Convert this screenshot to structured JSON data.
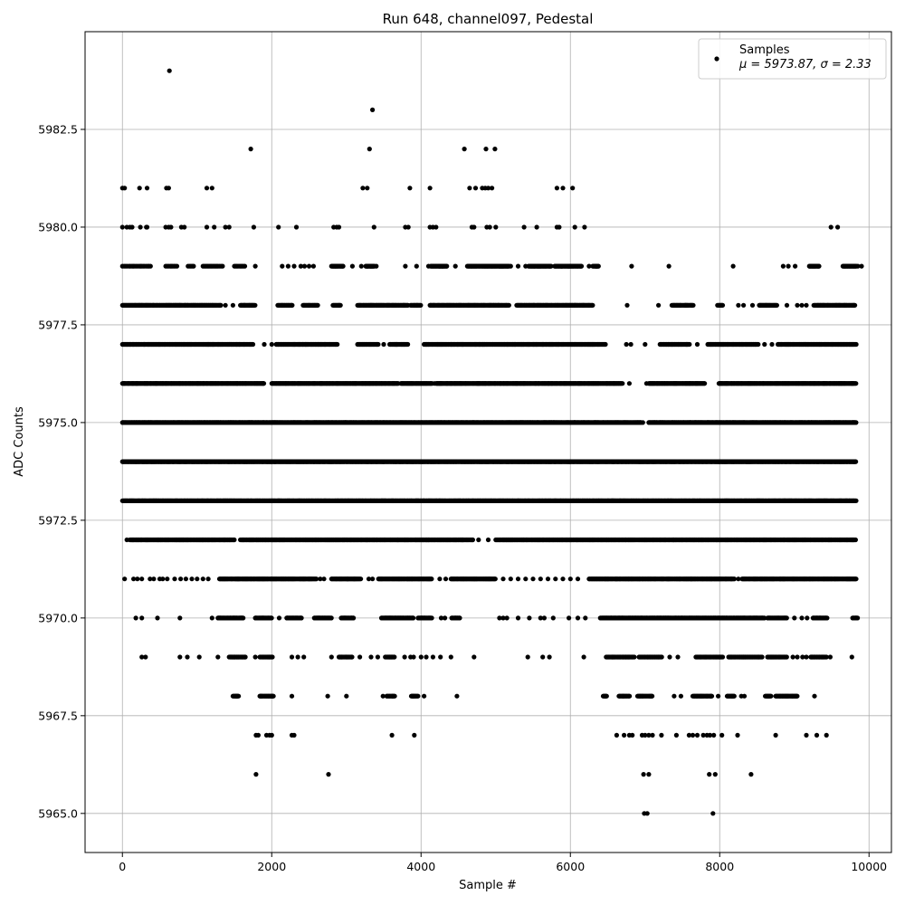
{
  "chart_data": {
    "type": "scatter",
    "title": "Run 648, channel097, Pedestal",
    "xlabel": "Sample #",
    "ylabel": "ADC Counts",
    "xlim": [
      -500,
      10300
    ],
    "ylim": [
      5964.0,
      5985.0
    ],
    "x_ticks": [
      0,
      2000,
      4000,
      6000,
      8000,
      10000
    ],
    "x_tick_labels": [
      "0",
      "2000",
      "4000",
      "6000",
      "8000",
      "10000"
    ],
    "y_ticks": [
      5965.0,
      5967.5,
      5970.0,
      5972.5,
      5975.0,
      5977.5,
      5980.0,
      5982.5
    ],
    "y_tick_labels": [
      "5965.0",
      "5967.5",
      "5970.0",
      "5972.5",
      "5975.0",
      "5977.5",
      "5980.0",
      "5982.5"
    ],
    "grid": true,
    "legend_position": "top-right",
    "marker_color": "#000000",
    "series": [
      {
        "name": "Samples",
        "legend_stats": "μ = 5973.87, σ = 2.33",
        "levels": [
          {
            "y": 5984,
            "x": [
              630
            ]
          },
          {
            "y": 5983,
            "x": [
              3350
            ]
          },
          {
            "y": 5982,
            "x": [
              1720,
              3310,
              4580,
              4870,
              4990
            ]
          },
          {
            "y": 5981,
            "x": [
              0,
              30,
              230,
              330,
              590,
              620,
              1130,
              1200,
              3220,
              3280,
              3850,
              4120,
              4650,
              4730,
              4820,
              4860,
              4900,
              4950,
              5820,
              5900,
              6030
            ]
          },
          {
            "y": 5980,
            "x": [
              0,
              60,
              100,
              130,
              240,
              320,
              330,
              580,
              620,
              650,
              790,
              830,
              1130,
              1230,
              1380,
              1430,
              1760,
              2090,
              2330,
              2830,
              2870,
              2900,
              3370,
              3790,
              3830,
              4120,
              4160,
              4200,
              4680,
              4710,
              4880,
              4920,
              5000,
              5380,
              5550,
              5820,
              5850,
              6060,
              6190,
              9490,
              9580
            ]
          },
          {
            "y": 5979,
            "segments": [
              [
                0,
                380
              ],
              [
                580,
                740
              ],
              [
                880,
                960
              ],
              [
                1080,
                1350
              ],
              [
                1500,
                1640
              ]
            ],
            "x": [
              1780,
              2140,
              2220,
              2300,
              2390,
              2440,
              2500,
              2560,
              2850,
              3080,
              3200,
              3280,
              3330,
              3400,
              3790,
              3940,
              4100,
              4290,
              4460,
              5200,
              5300,
              5400,
              5880,
              6250,
              6350,
              6820,
              7320,
              8180,
              8850,
              8920,
              9010,
              9850,
              9900
            ],
            "dense": [
              [
                2800,
                2960
              ],
              [
                3260,
                3380
              ],
              [
                4130,
                4350
              ],
              [
                4620,
                5180
              ],
              [
                5440,
                5750
              ],
              [
                5790,
                6150
              ],
              [
                6300,
                6380
              ],
              [
                9200,
                9340
              ],
              [
                9650,
                9830
              ]
            ]
          },
          {
            "y": 5978,
            "dense": [
              [
                0,
                1320
              ],
              [
                1580,
                1780
              ],
              [
                2080,
                2280
              ],
              [
                2420,
                2620
              ],
              [
                2820,
                2930
              ],
              [
                3150,
                3830
              ],
              [
                3860,
                4000
              ],
              [
                4120,
                5180
              ],
              [
                5280,
                6310
              ],
              [
                7360,
                7650
              ],
              [
                7970,
                8040
              ],
              [
                8530,
                8770
              ],
              [
                9260,
                9820
              ]
            ],
            "x": [
              1380,
              1480,
              6760,
              7180,
              8250,
              8320,
              8440,
              8900,
              9040,
              9100,
              9160
            ]
          },
          {
            "y": 5977,
            "dense": [
              [
                0,
                1750
              ],
              [
                2060,
                2880
              ],
              [
                3150,
                3430
              ],
              [
                3580,
                3830
              ],
              [
                4040,
                6470
              ],
              [
                7200,
                7600
              ],
              [
                7840,
                8520
              ],
              [
                8780,
                9830
              ]
            ],
            "x": [
              1900,
              2000,
              3500,
              6750,
              6810,
              7000,
              7700,
              8600,
              8700
            ]
          },
          {
            "y": 5976,
            "dense": [
              [
                0,
                1900
              ],
              [
                2000,
                3700
              ],
              [
                3730,
                4150
              ],
              [
                4200,
                6700
              ],
              [
                7050,
                7800
              ],
              [
                7990,
                9830
              ]
            ],
            "x": [
              4180,
              6790,
              7020
            ]
          },
          {
            "y": 5975,
            "dense": [
              [
                0,
                6950
              ],
              [
                7050,
                9830
              ]
            ],
            "x": [
              6970
            ]
          },
          {
            "y": 5974,
            "dense": [
              [
                0,
                9830
              ]
            ],
            "x": []
          },
          {
            "y": 5973,
            "dense": [
              [
                0,
                9830
              ]
            ],
            "x": []
          },
          {
            "y": 5972,
            "dense": [
              [
                100,
                1500
              ],
              [
                1580,
                4700
              ],
              [
                5000,
                9830
              ]
            ],
            "x": [
              60,
              4770,
              4900
            ]
          },
          {
            "y": 5971,
            "dense": [
              [
                1300,
                2600
              ],
              [
                2800,
                3200
              ],
              [
                3430,
                4150
              ],
              [
                4400,
                5000
              ],
              [
                6250,
                8200
              ],
              [
                8300,
                9830
              ]
            ],
            "x": [
              30,
              150,
              200,
              260,
              370,
              420,
              500,
              540,
              600,
              700,
              780,
              850,
              930,
              1000,
              1080,
              1150,
              2650,
              2700,
              3300,
              3350,
              4250,
              4330,
              5100,
              5200,
              5300,
              5400,
              5500,
              5600,
              5700,
              5800,
              5900,
              6000,
              6100,
              8250
            ]
          },
          {
            "y": 5970,
            "dense": [
              [
                1280,
                1620
              ],
              [
                1780,
                2000
              ],
              [
                2200,
                2400
              ],
              [
                2570,
                2800
              ],
              [
                2930,
                3100
              ],
              [
                3470,
                3900
              ],
              [
                3960,
                4150
              ],
              [
                4410,
                4520
              ],
              [
                6400,
                8600
              ],
              [
                8640,
                8900
              ],
              [
                9250,
                9440
              ],
              [
                9780,
                9850
              ]
            ],
            "x": [
              180,
              260,
              470,
              770,
              1200,
              2100,
              4270,
              4320,
              5050,
              5100,
              5150,
              5300,
              5450,
              5600,
              5650,
              5770,
              5980,
              6100,
              6200,
              9000,
              9100,
              9170
            ]
          },
          {
            "y": 5969,
            "dense": [
              [
                1430,
                1650
              ],
              [
                1840,
                2010
              ],
              [
                2900,
                3080
              ],
              [
                3520,
                3650
              ],
              [
                6480,
                6860
              ],
              [
                6920,
                7230
              ],
              [
                7680,
                8040
              ],
              [
                8120,
                8570
              ],
              [
                8640,
                8900
              ],
              [
                9220,
                9440
              ]
            ],
            "x": [
              260,
              310,
              770,
              870,
              1030,
              1280,
              1780,
              2270,
              2350,
              2430,
              2800,
              3180,
              3330,
              3420,
              3780,
              3860,
              3900,
              4000,
              4070,
              4160,
              4260,
              4400,
              4710,
              5430,
              5630,
              5720,
              6180,
              7330,
              7440,
              8980,
              9040,
              9110,
              9160,
              9480,
              9770
            ]
          },
          {
            "y": 5968,
            "dense": [
              [
                1480,
                1560
              ],
              [
                1840,
                2030
              ],
              [
                3540,
                3650
              ],
              [
                3870,
                3960
              ],
              [
                6440,
                6490
              ],
              [
                6650,
                6800
              ],
              [
                6900,
                7100
              ],
              [
                7640,
                7900
              ],
              [
                8100,
                8200
              ],
              [
                8610,
                8690
              ],
              [
                8750,
                9040
              ]
            ],
            "x": [
              2270,
              2750,
              3000,
              3490,
              4040,
              4480,
              7390,
              7480,
              7980,
              8290,
              8330,
              9270
            ]
          },
          {
            "y": 5967,
            "x": [
              1790,
              1820,
              1930,
              1970,
              2000,
              2270,
              2300,
              3610,
              3910,
              6620,
              6720,
              6790,
              6830,
              6960,
              7000,
              7050,
              7100,
              7220,
              7420,
              7590,
              7640,
              7700,
              7780,
              7830,
              7870,
              7920,
              8030,
              8240,
              8750,
              9160,
              9300,
              9430
            ]
          },
          {
            "y": 5966,
            "x": [
              1790,
              2760,
              6980,
              7050,
              7860,
              7940,
              8420
            ]
          },
          {
            "y": 5965,
            "x": [
              6990,
              7030,
              7910
            ]
          }
        ]
      }
    ]
  }
}
